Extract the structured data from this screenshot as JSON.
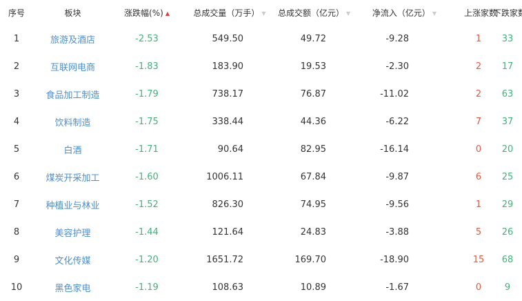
{
  "columns": {
    "rank": "序号",
    "sector": "板块",
    "change": "涨跌幅(%)",
    "volume": "总成交量（万手）",
    "amount": "总成交额（亿元）",
    "netflow": "净流入（亿元）",
    "up": "上涨家数",
    "down": "下跌家数"
  },
  "sort_icons": {
    "change": "▲",
    "volume": "▼",
    "amount": "▼",
    "netflow": "▼"
  },
  "colors": {
    "rise": "#e8553e",
    "fall": "#3fb27a",
    "link": "#4a8fd6"
  },
  "rows": [
    {
      "rank": "1",
      "sector": "旅游及酒店",
      "change": "-2.53",
      "volume": "549.50",
      "amount": "49.72",
      "netflow": "-9.28",
      "up": "1",
      "down": "33"
    },
    {
      "rank": "2",
      "sector": "互联网电商",
      "change": "-1.83",
      "volume": "183.90",
      "amount": "19.53",
      "netflow": "-2.30",
      "up": "2",
      "down": "17"
    },
    {
      "rank": "3",
      "sector": "食品加工制造",
      "change": "-1.79",
      "volume": "738.17",
      "amount": "76.87",
      "netflow": "-11.02",
      "up": "2",
      "down": "63"
    },
    {
      "rank": "4",
      "sector": "饮料制造",
      "change": "-1.75",
      "volume": "338.44",
      "amount": "44.36",
      "netflow": "-6.22",
      "up": "7",
      "down": "37"
    },
    {
      "rank": "5",
      "sector": "白酒",
      "change": "-1.71",
      "volume": "90.64",
      "amount": "82.95",
      "netflow": "-16.14",
      "up": "0",
      "down": "20"
    },
    {
      "rank": "6",
      "sector": "煤炭开采加工",
      "change": "-1.60",
      "volume": "1006.11",
      "amount": "67.84",
      "netflow": "-9.87",
      "up": "6",
      "down": "25"
    },
    {
      "rank": "7",
      "sector": "种植业与林业",
      "change": "-1.52",
      "volume": "826.30",
      "amount": "74.95",
      "netflow": "-9.56",
      "up": "1",
      "down": "29"
    },
    {
      "rank": "8",
      "sector": "美容护理",
      "change": "-1.44",
      "volume": "121.64",
      "amount": "24.83",
      "netflow": "-3.88",
      "up": "5",
      "down": "26"
    },
    {
      "rank": "9",
      "sector": "文化传媒",
      "change": "-1.20",
      "volume": "1651.72",
      "amount": "169.70",
      "netflow": "-18.90",
      "up": "15",
      "down": "68"
    },
    {
      "rank": "10",
      "sector": "黑色家电",
      "change": "-1.19",
      "volume": "108.63",
      "amount": "10.89",
      "netflow": "-1.67",
      "up": "0",
      "down": "9"
    }
  ]
}
